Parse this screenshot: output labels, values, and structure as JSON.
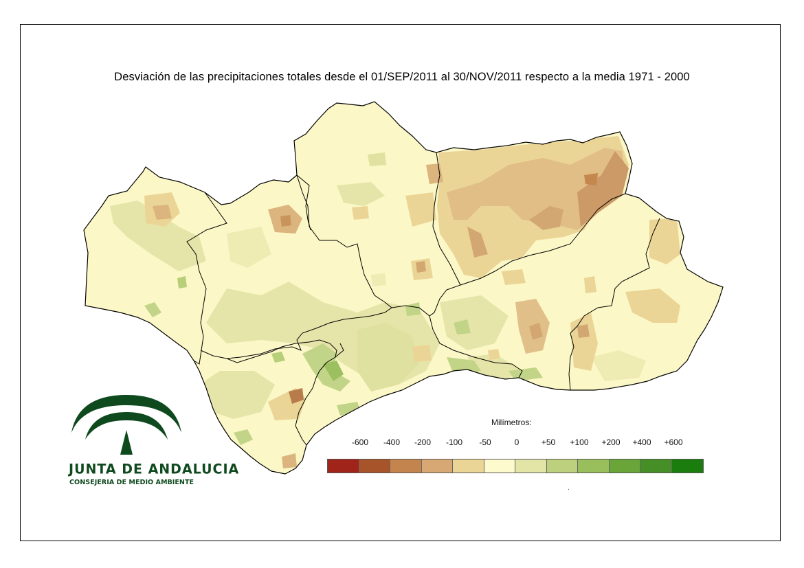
{
  "map": {
    "title": "Desviación de las precipitaciones totales desde el 01/SEP/2011 al  30/NOV/2011 respecto a la media 1971 - 2000"
  },
  "legend": {
    "title": "Milímetros:",
    "labels": [
      "-600",
      "-400",
      "-200",
      "-100",
      "-50",
      "0",
      "+50",
      "+100",
      "+200",
      "+400",
      "+600"
    ],
    "colors": [
      "#a0241a",
      "#a8542a",
      "#c4844e",
      "#d7a873",
      "#ebd596",
      "#fdfbce",
      "#e3e5a6",
      "#bcd07e",
      "#98bf5b",
      "#6aa53a",
      "#468f27",
      "#1a7d0e"
    ]
  },
  "logo": {
    "name": "JUNTA DE ANDALUCIA",
    "subtitle": "CONSEJERIA DE MEDIO AMBIENTE",
    "color": "#0f4a1e"
  },
  "map_colors": {
    "base": "#fbf7c6",
    "light_green": "#e6e5a9",
    "green": "#c2d487",
    "deep_green": "#9cc060",
    "light_tan": "#ebd596",
    "tan": "#dcb47e",
    "dark_tan": "#cc9a66",
    "border": "#000000"
  },
  "footnote": "."
}
